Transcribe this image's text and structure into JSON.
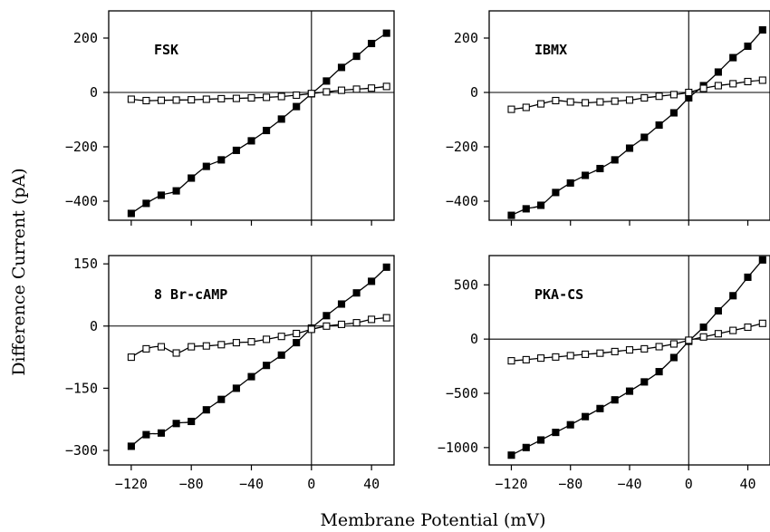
{
  "figure": {
    "ylabel": "Difference Current (pA)",
    "xlabel": "Membrane Potential (mV)"
  },
  "chart_data": [
    {
      "type": "scatter",
      "title": "FSK",
      "xlim": [
        -135,
        55
      ],
      "ylim": [
        -470,
        300
      ],
      "xticks": [
        -120,
        -80,
        -40,
        0,
        40
      ],
      "yticks": [
        200,
        0,
        -200,
        -400
      ],
      "x": [
        -120,
        -110,
        -100,
        -90,
        -80,
        -70,
        -60,
        -50,
        -40,
        -30,
        -20,
        -10,
        0,
        10,
        20,
        30,
        40,
        50
      ],
      "series": [
        {
          "marker": "filled-square",
          "values": [
            -445,
            -408,
            -378,
            -362,
            -315,
            -272,
            -248,
            -213,
            -178,
            -140,
            -98,
            -52,
            -5,
            42,
            92,
            133,
            180,
            218
          ]
        },
        {
          "marker": "open-square",
          "values": [
            -25,
            -30,
            -29,
            -28,
            -27,
            -25,
            -23,
            -22,
            -20,
            -18,
            -15,
            -10,
            -4,
            2,
            8,
            12,
            16,
            22
          ]
        }
      ]
    },
    {
      "type": "scatter",
      "title": "IBMX",
      "xlim": [
        -135,
        55
      ],
      "ylim": [
        -470,
        300
      ],
      "xticks": [
        -120,
        -80,
        -40,
        0,
        40
      ],
      "yticks": [
        200,
        0,
        -200,
        -400
      ],
      "x": [
        -120,
        -110,
        -100,
        -90,
        -80,
        -70,
        -60,
        -50,
        -40,
        -30,
        -20,
        -10,
        0,
        10,
        20,
        30,
        40,
        50
      ],
      "series": [
        {
          "marker": "filled-square",
          "values": [
            -452,
            -428,
            -415,
            -368,
            -333,
            -305,
            -280,
            -248,
            -205,
            -165,
            -120,
            -75,
            -20,
            25,
            75,
            128,
            170,
            230
          ]
        },
        {
          "marker": "open-square",
          "values": [
            -62,
            -55,
            -42,
            -30,
            -35,
            -38,
            -35,
            -32,
            -28,
            -20,
            -14,
            -8,
            0,
            15,
            25,
            32,
            40,
            45
          ]
        }
      ]
    },
    {
      "type": "scatter",
      "title": "8 Br-cAMP",
      "xlim": [
        -135,
        55
      ],
      "ylim": [
        -335,
        170
      ],
      "xticks": [
        -120,
        -80,
        -40,
        0,
        40
      ],
      "yticks": [
        150,
        0,
        -150,
        -300
      ],
      "x": [
        -120,
        -110,
        -100,
        -90,
        -80,
        -70,
        -60,
        -50,
        -40,
        -30,
        -20,
        -10,
        0,
        10,
        20,
        30,
        40,
        50
      ],
      "series": [
        {
          "marker": "filled-square",
          "values": [
            -290,
            -262,
            -258,
            -235,
            -230,
            -202,
            -177,
            -150,
            -122,
            -95,
            -70,
            -40,
            -5,
            25,
            53,
            80,
            108,
            142
          ]
        },
        {
          "marker": "open-square",
          "values": [
            -75,
            -55,
            -50,
            -65,
            -50,
            -48,
            -45,
            -40,
            -38,
            -32,
            -25,
            -18,
            -8,
            0,
            4,
            8,
            16,
            20
          ]
        }
      ]
    },
    {
      "type": "scatter",
      "title": "PKA-CS",
      "xlim": [
        -135,
        55
      ],
      "ylim": [
        -1160,
        770
      ],
      "xticks": [
        -120,
        -80,
        -40,
        0,
        40
      ],
      "yticks": [
        500,
        0,
        -500,
        -1000
      ],
      "x": [
        -120,
        -110,
        -100,
        -90,
        -80,
        -70,
        -60,
        -50,
        -40,
        -30,
        -20,
        -10,
        0,
        10,
        20,
        30,
        40,
        50
      ],
      "series": [
        {
          "marker": "filled-square",
          "values": [
            -1070,
            -1000,
            -930,
            -860,
            -790,
            -715,
            -640,
            -560,
            -480,
            -395,
            -300,
            -170,
            -20,
            110,
            260,
            400,
            570,
            730
          ]
        },
        {
          "marker": "open-square",
          "values": [
            -200,
            -190,
            -175,
            -165,
            -152,
            -140,
            -130,
            -115,
            -100,
            -90,
            -70,
            -45,
            -10,
            20,
            50,
            80,
            110,
            145
          ]
        }
      ]
    }
  ]
}
